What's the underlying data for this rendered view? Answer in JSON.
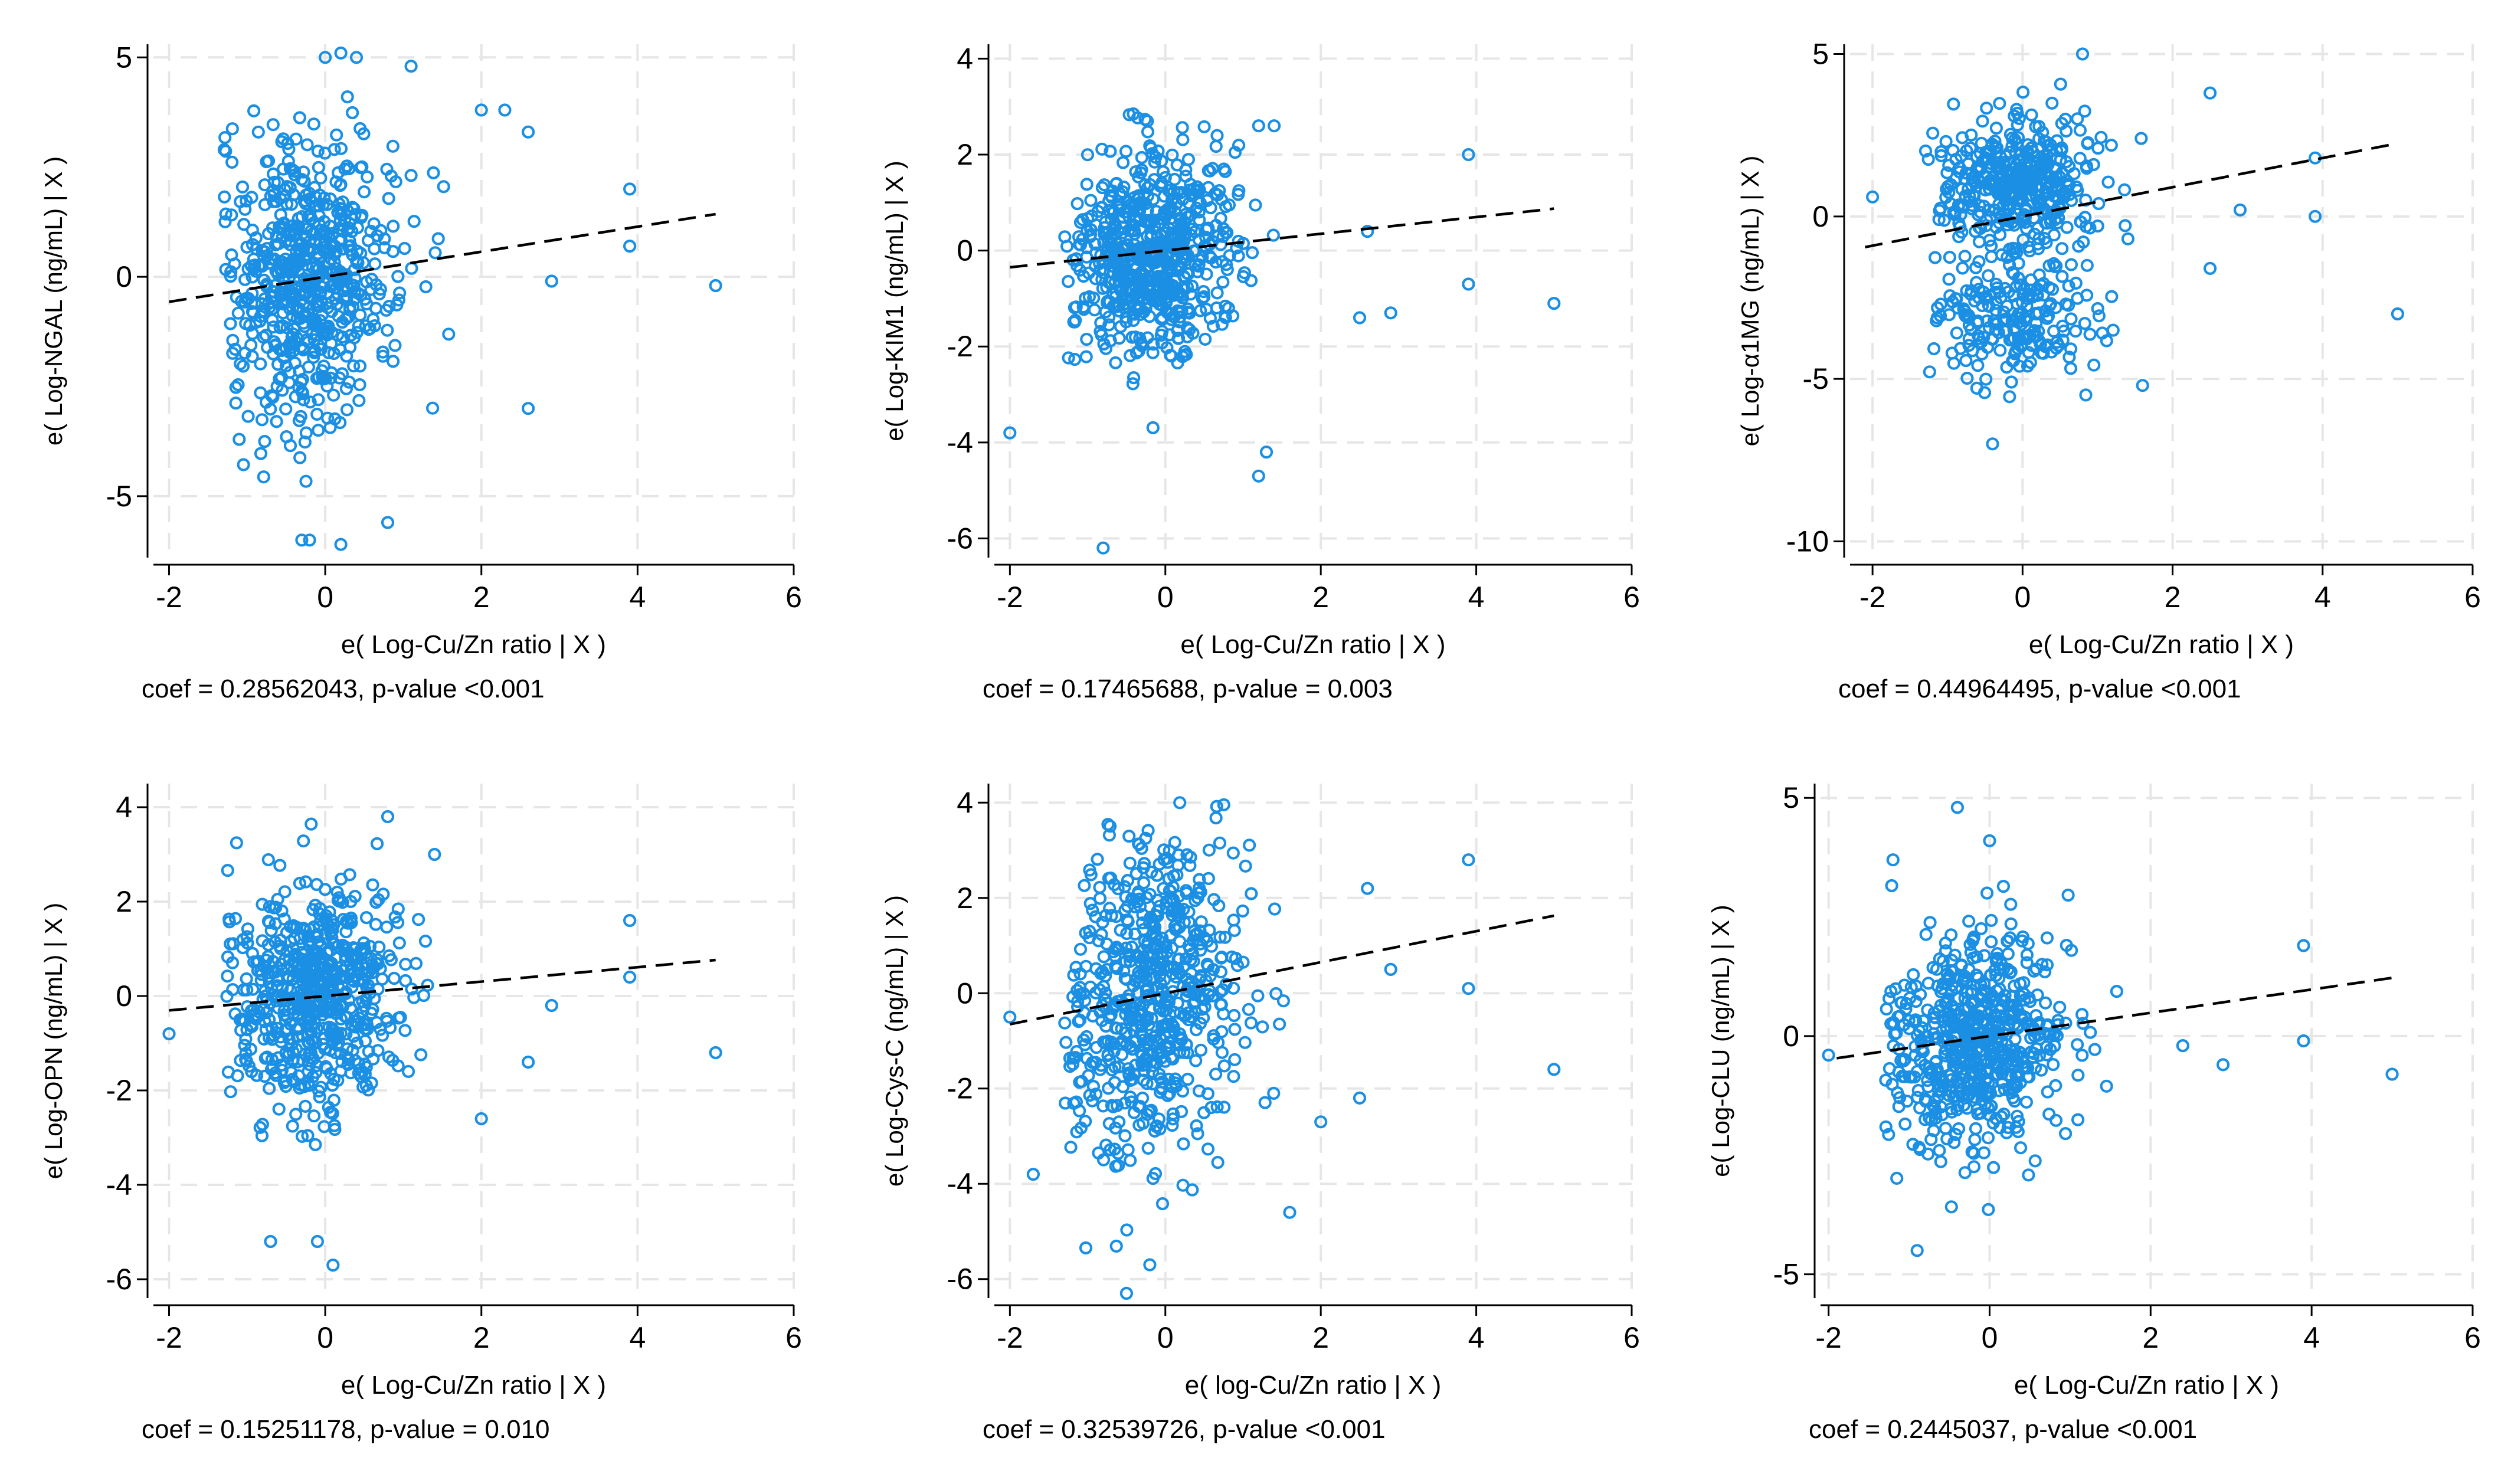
{
  "figure": {
    "points_per_panel": 620,
    "colors": {
      "marker": "#1a8fe3",
      "fit_line": "#000000",
      "axis": "#000000",
      "grid": "#e6e6e6",
      "background": "#ffffff"
    }
  },
  "chart_data": [
    {
      "type": "scatter",
      "title": "",
      "xlabel": "e( Log-Cu/Zn ratio | X )",
      "ylabel": "e( Log-NGAL (ng/mL) | X )",
      "xlim": [
        -2.2,
        6.0
      ],
      "ylim": [
        -6.4,
        5.3
      ],
      "xticks": [
        -2,
        0,
        2,
        4,
        6
      ],
      "yticks": [
        -5,
        0,
        5
      ],
      "fit": {
        "slope": 0.28562043,
        "intercept": 0.0
      },
      "caption": "coef = 0.28562043, p-value <0.001",
      "cloud": {
        "x_sd": 0.55,
        "y_sd": 1.55,
        "y_clip": [
          -6.1,
          5.1
        ],
        "split": null
      },
      "points": [
        [
          3.9,
          2.0
        ],
        [
          3.9,
          0.7
        ],
        [
          5.0,
          -0.2
        ],
        [
          2.6,
          -3.0
        ],
        [
          2.3,
          3.8
        ],
        [
          2.0,
          3.8
        ],
        [
          0.4,
          5.0
        ],
        [
          0.0,
          5.0
        ],
        [
          0.2,
          5.1
        ],
        [
          1.1,
          4.8
        ],
        [
          0.8,
          -5.6
        ],
        [
          -0.3,
          -6.0
        ],
        [
          0.2,
          -6.1
        ],
        [
          -0.2,
          -6.0
        ],
        [
          2.6,
          3.3
        ],
        [
          2.9,
          -0.1
        ]
      ]
    },
    {
      "type": "scatter",
      "title": "",
      "xlabel": "e( Log-Cu/Zn ratio | X )",
      "ylabel": "e( Log-KIM1 (ng/mL) | X )",
      "xlim": [
        -2.2,
        6.0
      ],
      "ylim": [
        -6.4,
        4.3
      ],
      "xticks": [
        -2,
        0,
        2,
        4,
        6
      ],
      "yticks": [
        -6,
        -4,
        -2,
        0,
        2,
        4
      ],
      "fit": {
        "slope": 0.17465688,
        "intercept": 0.0
      },
      "caption": "coef = 0.17465688, p-value = 0.003",
      "cloud": {
        "x_sd": 0.55,
        "y_sd": 1.1,
        "y_clip": [
          -4.8,
          2.9
        ],
        "split": null
      },
      "points": [
        [
          -2.0,
          -3.8
        ],
        [
          -0.8,
          -6.2
        ],
        [
          3.9,
          2.0
        ],
        [
          3.9,
          -0.7
        ],
        [
          5.0,
          -1.1
        ],
        [
          2.9,
          -1.3
        ],
        [
          2.5,
          -1.4
        ],
        [
          1.3,
          -4.2
        ],
        [
          1.2,
          -4.7
        ],
        [
          2.6,
          0.4
        ],
        [
          1.4,
          2.6
        ],
        [
          1.2,
          2.6
        ]
      ]
    },
    {
      "type": "scatter",
      "title": "",
      "xlabel": "e( Log-Cu/Zn ratio | X )",
      "ylabel": "e( Log-α1MG (ng/mL) | X )",
      "xlim": [
        -2.3,
        6.0
      ],
      "ylim": [
        -10.5,
        5.3
      ],
      "xticks": [
        -2,
        0,
        2,
        4,
        6
      ],
      "yticks": [
        -10,
        -5,
        0,
        5
      ],
      "fit": {
        "slope": 0.44964495,
        "intercept": 0.0
      },
      "caption": "coef = 0.44964495, p-value <0.001",
      "cloud": {
        "x_sd": 0.55,
        "y_sd": 1.0,
        "y_clip": [
          -7.0,
          5.0
        ],
        "split": {
          "lower_mean": -3.2,
          "lower_sd": 0.9,
          "lower_fraction": 0.3,
          "upper_mean": 1.0
        }
      },
      "points": [
        [
          -2.0,
          0.6
        ],
        [
          3.9,
          1.8
        ],
        [
          3.9,
          0.0
        ],
        [
          5.0,
          -3.0
        ],
        [
          0.8,
          5.0
        ],
        [
          2.5,
          -1.6
        ],
        [
          1.6,
          -5.2
        ],
        [
          -0.4,
          -7.0
        ],
        [
          2.9,
          0.2
        ],
        [
          2.5,
          3.8
        ]
      ]
    },
    {
      "type": "scatter",
      "title": "",
      "xlabel": "e( Log-Cu/Zn ratio | X )",
      "ylabel": "e( Log-OPN (ng/mL) | X )",
      "xlim": [
        -2.2,
        6.0
      ],
      "ylim": [
        -6.4,
        4.5
      ],
      "xticks": [
        -2,
        0,
        2,
        4,
        6
      ],
      "yticks": [
        -6,
        -4,
        -2,
        0,
        2,
        4
      ],
      "fit": {
        "slope": 0.15251178,
        "intercept": 0.0
      },
      "caption": "coef = 0.15251178, p-value = 0.010",
      "cloud": {
        "x_sd": 0.55,
        "y_sd": 1.2,
        "y_clip": [
          -5.7,
          3.8
        ],
        "split": null
      },
      "points": [
        [
          -2.0,
          -0.8
        ],
        [
          3.9,
          1.6
        ],
        [
          3.9,
          0.4
        ],
        [
          5.0,
          -1.2
        ],
        [
          2.0,
          -2.6
        ],
        [
          0.1,
          -5.7
        ],
        [
          -0.1,
          -5.2
        ],
        [
          -0.7,
          -5.2
        ],
        [
          0.8,
          3.8
        ],
        [
          1.4,
          3.0
        ],
        [
          2.6,
          -1.4
        ],
        [
          2.9,
          -0.2
        ]
      ]
    },
    {
      "type": "scatter",
      "title": "",
      "xlabel": "e( log-Cu/Zn ratio | X )",
      "ylabel": "e( Log-Cys-C (ng/mL) | X )",
      "xlim": [
        -2.2,
        6.0
      ],
      "ylim": [
        -6.4,
        4.4
      ],
      "xticks": [
        -2,
        0,
        2,
        4,
        6
      ],
      "yticks": [
        -6,
        -4,
        -2,
        0,
        2,
        4
      ],
      "fit": {
        "slope": 0.32539726,
        "intercept": 0.0
      },
      "caption": "coef = 0.32539726, p-value <0.001",
      "cloud": {
        "x_sd": 0.55,
        "y_sd": 1.7,
        "y_clip": [
          -6.3,
          4.0
        ],
        "split": null
      },
      "points": [
        [
          -2.0,
          -0.5
        ],
        [
          -1.7,
          -3.8
        ],
        [
          3.9,
          2.8
        ],
        [
          3.9,
          0.1
        ],
        [
          5.0,
          -1.6
        ],
        [
          2.6,
          2.2
        ],
        [
          2.5,
          -2.2
        ],
        [
          2.0,
          -2.7
        ],
        [
          1.6,
          -4.6
        ],
        [
          -0.5,
          -6.3
        ],
        [
          -0.2,
          -5.7
        ],
        [
          2.9,
          0.5
        ]
      ]
    },
    {
      "type": "scatter",
      "title": "",
      "xlabel": "e( Log-Cu/Zn ratio | X )",
      "ylabel": "e( Log-CLU (ng/mL) | X )",
      "xlim": [
        -2.1,
        6.0
      ],
      "ylim": [
        -5.5,
        5.3
      ],
      "xticks": [
        -2,
        0,
        2,
        4,
        6
      ],
      "yticks": [
        -5,
        0,
        5
      ],
      "fit": {
        "slope": 0.2445037,
        "intercept": 0.0
      },
      "caption": "coef = 0.2445037, p-value <0.001",
      "cloud": {
        "x_sd": 0.5,
        "y_sd": 1.1,
        "y_clip": [
          -4.5,
          4.8
        ],
        "split": null
      },
      "points": [
        [
          -2.0,
          -0.4
        ],
        [
          3.9,
          1.9
        ],
        [
          3.9,
          -0.1
        ],
        [
          5.0,
          -0.8
        ],
        [
          -0.9,
          -4.5
        ],
        [
          -0.4,
          4.8
        ],
        [
          -1.2,
          3.7
        ],
        [
          0.0,
          4.1
        ],
        [
          2.9,
          -0.6
        ],
        [
          2.4,
          -0.2
        ],
        [
          -1.1,
          0.7
        ]
      ]
    }
  ]
}
